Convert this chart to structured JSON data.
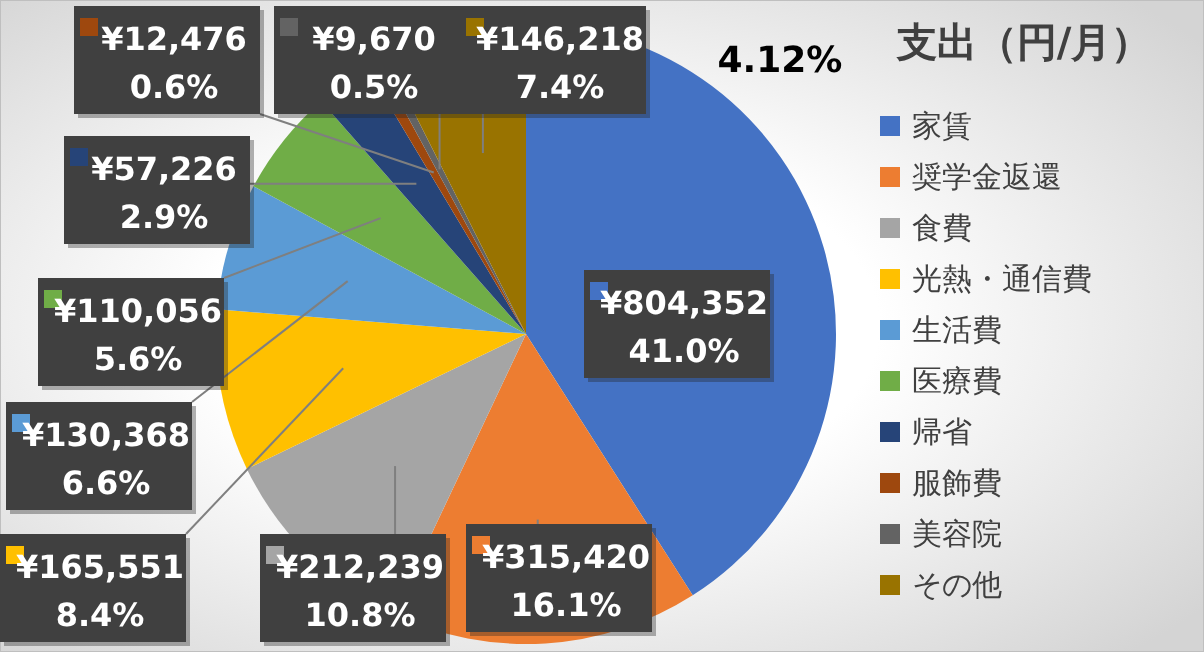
{
  "chart_data": {
    "type": "pie",
    "title": "支出（円/月）",
    "legend": "right",
    "categories": [
      "家賃",
      "奨学金返還",
      "食費",
      "光熱・通信費",
      "生活費",
      "医療費",
      "帰省",
      "服飾費",
      "美容院",
      "その他"
    ],
    "values": [
      804352,
      315420,
      212239,
      165551,
      130368,
      110056,
      57226,
      12476,
      9670,
      146218
    ],
    "colors": [
      "#4472c4",
      "#ed7d31",
      "#a5a5a5",
      "#ffc000",
      "#5b9bd5",
      "#70ad47",
      "#264478",
      "#9e480e",
      "#636363",
      "#997300"
    ],
    "value_labels": [
      "¥804,352\n41.0%",
      "¥315,420\n16.1%",
      "¥212,239\n10.8%",
      "¥165,551\n8.4%",
      "¥130,368\n6.6%",
      "¥110,056\n5.6%",
      "¥57,226\n2.9%",
      "¥12,476\n0.6%",
      "¥9,670\n0.5%",
      "¥146,218\n7.4%"
    ],
    "annotations": [
      "4.12%"
    ]
  }
}
